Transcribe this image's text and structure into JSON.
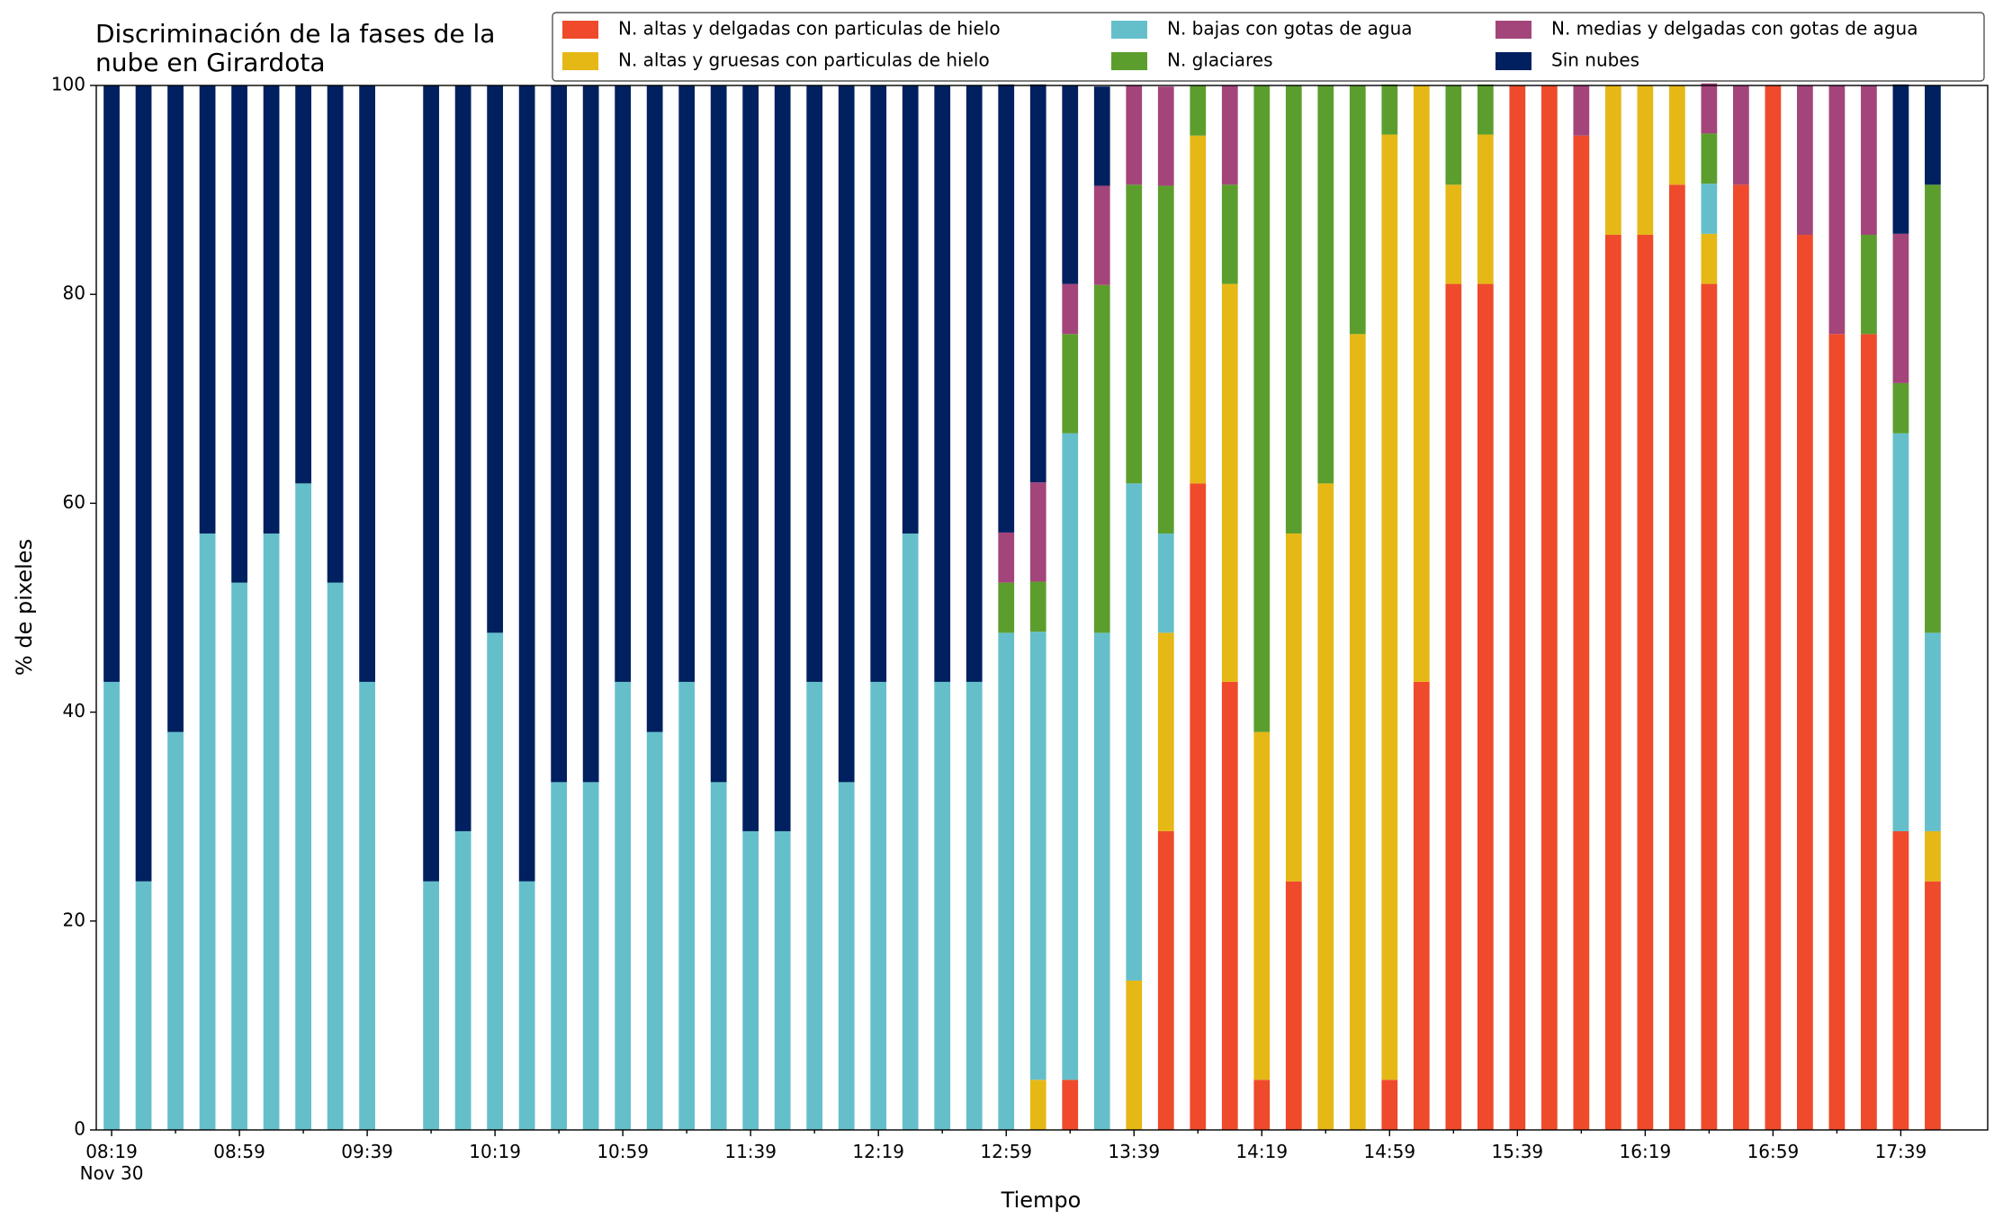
{
  "chart_data": {
    "type": "stacked_bar",
    "title": "Discriminación de la fases de la\nnube en Girardota",
    "xlabel": "Tiempo",
    "ylabel": "% de pixeles",
    "categories": [
      "08:19\nNov 30",
      null,
      null,
      null,
      "08:59",
      null,
      null,
      null,
      "09:39",
      null,
      null,
      null,
      "10:19",
      null,
      null,
      null,
      "10:59",
      null,
      null,
      null,
      "11:39",
      null,
      null,
      null,
      "12:19",
      null,
      null,
      null,
      "12:59",
      null,
      null,
      null,
      "13:39",
      null,
      null,
      null,
      "14:19",
      null,
      null,
      null,
      "14:59",
      null,
      null,
      null,
      "15:39",
      null,
      null,
      null,
      "16:19",
      null,
      null,
      null,
      "16:59",
      null,
      null,
      null,
      "17:39",
      null
    ],
    "ylim": [
      0,
      100
    ],
    "yticks": [
      0,
      20,
      40,
      60,
      80,
      100
    ],
    "grid": false,
    "legend": "upper right",
    "series": [
      {
        "name": "N. altas y delgadas con particulas de hielo",
        "color": "#ee4a2b",
        "values": [
          0,
          0,
          0,
          0,
          0,
          0,
          0,
          0,
          0,
          null,
          0,
          0,
          0,
          0,
          0,
          0,
          0,
          0,
          0,
          0,
          0,
          0,
          0,
          0,
          0,
          0,
          0,
          0,
          0,
          0,
          4.8,
          0,
          0,
          28.6,
          61.9,
          42.9,
          4.8,
          23.8,
          0,
          0,
          4.8,
          42.9,
          81.0,
          81.0,
          100,
          100,
          95.2,
          85.7,
          85.7,
          90.5,
          81.0,
          90.5,
          100,
          85.7,
          76.2,
          76.2,
          28.6,
          23.8
        ]
      },
      {
        "name": "N. altas y gruesas con particulas de hielo",
        "color": "#e6b816",
        "values": [
          0,
          0,
          0,
          0,
          0,
          0,
          0,
          0,
          0,
          null,
          0,
          0,
          0,
          0,
          0,
          0,
          0,
          0,
          0,
          0,
          0,
          0,
          0,
          0,
          0,
          0,
          0,
          0,
          0,
          4.8,
          0,
          0,
          14.3,
          19.0,
          33.3,
          38.1,
          33.3,
          33.3,
          61.9,
          76.2,
          90.5,
          57.1,
          9.5,
          14.3,
          0,
          0,
          0,
          14.3,
          14.3,
          9.5,
          4.8,
          0,
          0,
          0,
          0,
          0,
          0,
          4.8
        ]
      },
      {
        "name": "N. bajas con gotas de agua",
        "color": "#65bfcb",
        "values": [
          42.9,
          23.8,
          38.1,
          57.1,
          52.4,
          57.1,
          61.9,
          52.4,
          42.9,
          null,
          23.8,
          28.6,
          47.6,
          23.8,
          33.3,
          33.3,
          42.9,
          38.1,
          42.9,
          33.3,
          28.6,
          28.6,
          42.9,
          33.3,
          42.9,
          57.1,
          42.9,
          42.9,
          47.6,
          42.9,
          61.9,
          47.6,
          47.6,
          9.5,
          0,
          0,
          0,
          0,
          0,
          0,
          0,
          0,
          0,
          0,
          0,
          0,
          0,
          0,
          0,
          0,
          4.8,
          0,
          0,
          0,
          0,
          0,
          38.1,
          19.0
        ]
      },
      {
        "name": "N. glaciares",
        "color": "#5c9e2d",
        "values": [
          0,
          0,
          0,
          0,
          0,
          0,
          0,
          0,
          0,
          null,
          0,
          0,
          0,
          0,
          0,
          0,
          0,
          0,
          0,
          0,
          0,
          0,
          0,
          0,
          0,
          0,
          0,
          0,
          4.8,
          4.8,
          9.5,
          33.3,
          28.6,
          33.3,
          4.8,
          9.5,
          61.9,
          42.9,
          38.1,
          23.8,
          4.8,
          0,
          9.5,
          4.8,
          0,
          0,
          0,
          0,
          0,
          0,
          4.8,
          0,
          0,
          0,
          0,
          9.5,
          4.8,
          42.9
        ]
      },
      {
        "name": "N. medias y delgadas con gotas de agua",
        "color": "#a3457a",
        "values": [
          0,
          0,
          0,
          0,
          0,
          0,
          0,
          0,
          0,
          null,
          0,
          0,
          0,
          0,
          0,
          0,
          0,
          0,
          0,
          0,
          0,
          0,
          0,
          0,
          0,
          0,
          0,
          0,
          4.8,
          9.5,
          4.8,
          9.5,
          9.5,
          9.5,
          0,
          9.5,
          0,
          0,
          0,
          0,
          0,
          0,
          0,
          0,
          0,
          0,
          4.8,
          0,
          0,
          0,
          4.8,
          9.5,
          0,
          14.3,
          23.8,
          14.3,
          14.3,
          0
        ]
      },
      {
        "name": "Sin nubes",
        "color": "#00205f",
        "values": [
          57.1,
          76.2,
          61.9,
          42.9,
          47.6,
          42.9,
          38.1,
          47.6,
          57.1,
          null,
          76.2,
          71.4,
          52.4,
          76.2,
          66.7,
          66.7,
          57.1,
          61.9,
          57.1,
          66.7,
          71.4,
          71.4,
          57.1,
          66.7,
          57.1,
          42.9,
          57.1,
          57.1,
          42.9,
          38.1,
          19.0,
          9.5,
          0,
          0,
          0,
          0,
          0,
          0,
          0,
          0,
          0,
          0,
          0,
          0,
          0,
          0,
          0,
          0,
          0,
          0,
          0,
          0,
          0,
          0,
          0,
          0,
          14.3,
          9.5
        ]
      }
    ]
  }
}
